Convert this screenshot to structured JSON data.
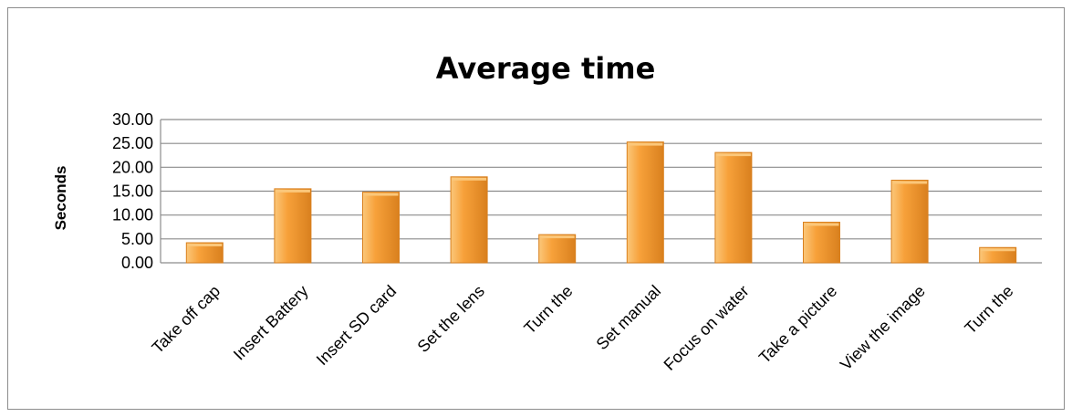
{
  "chart_data": {
    "type": "bar",
    "title": "Average time",
    "xlabel": "",
    "ylabel": "Seconds",
    "categories": [
      "Take off cap",
      "Insert Battery",
      "Insert SD card",
      "Set the lens",
      "Turn the",
      "Set manual",
      "Focus on water",
      "Take a picture",
      "View the image",
      "Turn the"
    ],
    "values": [
      4.2,
      15.5,
      14.8,
      18.0,
      5.9,
      25.3,
      23.1,
      8.5,
      17.3,
      3.2
    ],
    "ylim": [
      0,
      30
    ],
    "yticks": [
      "0.00",
      "5.00",
      "10.00",
      "15.00",
      "20.00",
      "25.00",
      "30.00"
    ],
    "grid": true,
    "legend": "none",
    "colors": {
      "bar_light": "#fbc77a",
      "bar_mid": "#f7a13a",
      "bar_dark": "#d9801e",
      "gridline": "#8c8c8c"
    }
  }
}
